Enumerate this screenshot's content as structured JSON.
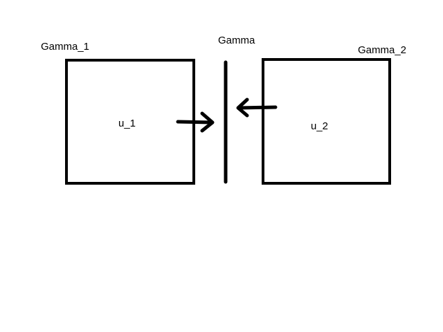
{
  "labels": {
    "gamma_1": "Gamma_1",
    "gamma": "Gamma",
    "gamma_2": "Gamma_2",
    "u_1": "u_1",
    "u_2": "u_2"
  },
  "colors": {
    "stroke": "#000000",
    "background": "#ffffff"
  }
}
